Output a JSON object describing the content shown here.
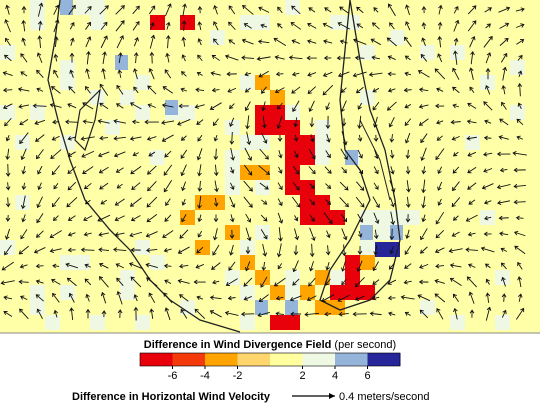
{
  "colorbar": {
    "title": "Difference in Wind Divergence Field",
    "unit": "(per second)",
    "lim": [
      -8,
      8
    ],
    "ticks": [
      -6,
      -4,
      -2,
      2,
      4,
      6
    ],
    "colors": [
      "#e8000b",
      "#f43a0a",
      "#ffa400",
      "#ffd66e",
      "#ffffa0",
      "#eef8e2",
      "#94b4da",
      "#26269a"
    ]
  },
  "velocity_legend": {
    "label": "Difference in Horizontal Wind Velocity",
    "scale_label": "0.4 meters/second"
  }
}
